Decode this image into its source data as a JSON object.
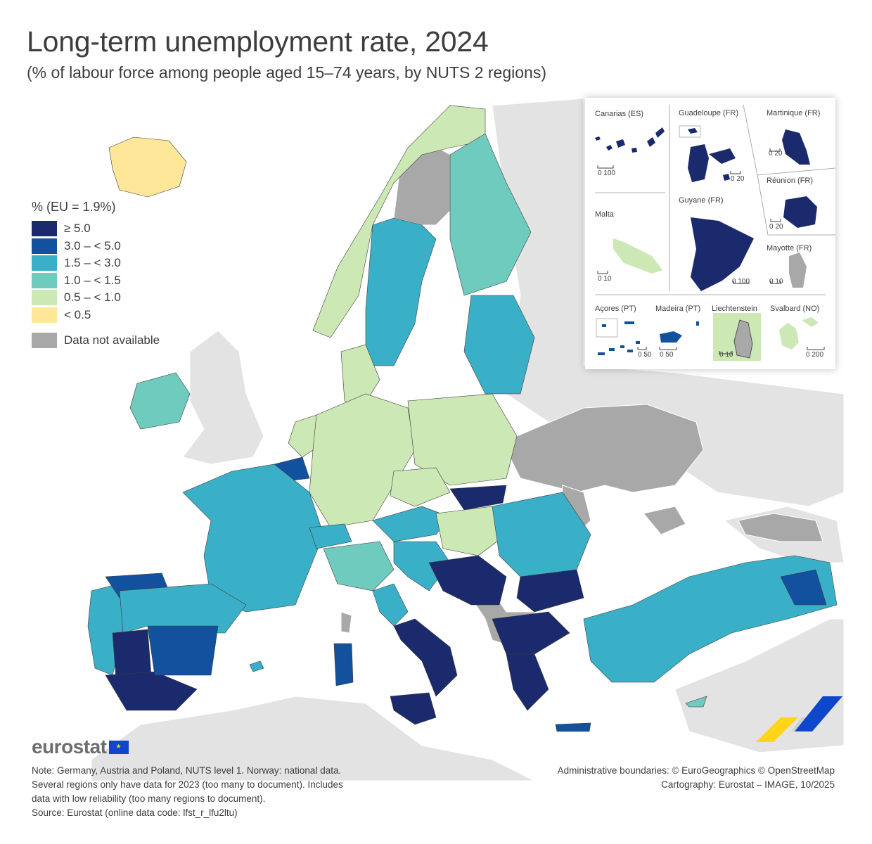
{
  "header": {
    "title": "Long-term unemployment rate, 2024",
    "subtitle": "(% of labour force among people aged 15–74 years, by NUTS 2 regions)"
  },
  "legend": {
    "title": "% (EU = 1.9%)",
    "classes": [
      {
        "label": "≥ 5.0",
        "color": "#1a2a6c"
      },
      {
        "label": "3.0 – < 5.0",
        "color": "#12519e"
      },
      {
        "label": "1.5 – < 3.0",
        "color": "#3ab0c8"
      },
      {
        "label": "1.0 – < 1.5",
        "color": "#6fcbbd"
      },
      {
        "label": "0.5 – < 1.0",
        "color": "#cce8b5"
      },
      {
        "label": "< 0.5",
        "color": "#ffe79a"
      }
    ],
    "na": {
      "label": "Data not available",
      "color": "#a8a8a8"
    }
  },
  "insets": {
    "canarias": {
      "name": "Canarias (ES)",
      "scale": "0  100"
    },
    "guadeloupe": {
      "name": "Guadeloupe (FR)",
      "scale": "0  20"
    },
    "martinique": {
      "name": "Martinique (FR)",
      "scale": "0  20"
    },
    "reunion": {
      "name": "Réunion (FR)",
      "scale": "0  20"
    },
    "guyane": {
      "name": "Guyane (FR)",
      "scale": "0  100"
    },
    "malta": {
      "name": "Malta",
      "scale": "0  10"
    },
    "mayotte": {
      "name": "Mayotte (FR)",
      "scale": "0  10"
    },
    "acores": {
      "name": "Açores (PT)",
      "scale": "0  50"
    },
    "madeira": {
      "name": "Madeira (PT)",
      "scale": "0  50"
    },
    "liechtenstein": {
      "name": "Liechtenstein",
      "scale": "0  10"
    },
    "svalbard": {
      "name": "Svalbard (NO)",
      "scale": "0  200"
    }
  },
  "footer": {
    "logo": "eurostat",
    "note_lines": [
      "Note: Germany, Austria and Poland, NUTS level 1. Norway: national data.",
      "Several regions only have data for 2023 (too many to document). Includes",
      "data with low reliability (too many regions to document).",
      "Source: Eurostat (online data code: lfst_r_lfu2ltu)"
    ],
    "credit_lines": [
      "Administrative boundaries: © EuroGeographics © OpenStreetMap",
      "Cartography: Eurostat – IMAGE, 10/2025"
    ]
  },
  "colors": {
    "non_eu_land": "#e3e3e3",
    "sea": "#ffffff",
    "border": "#3b3b3b"
  }
}
